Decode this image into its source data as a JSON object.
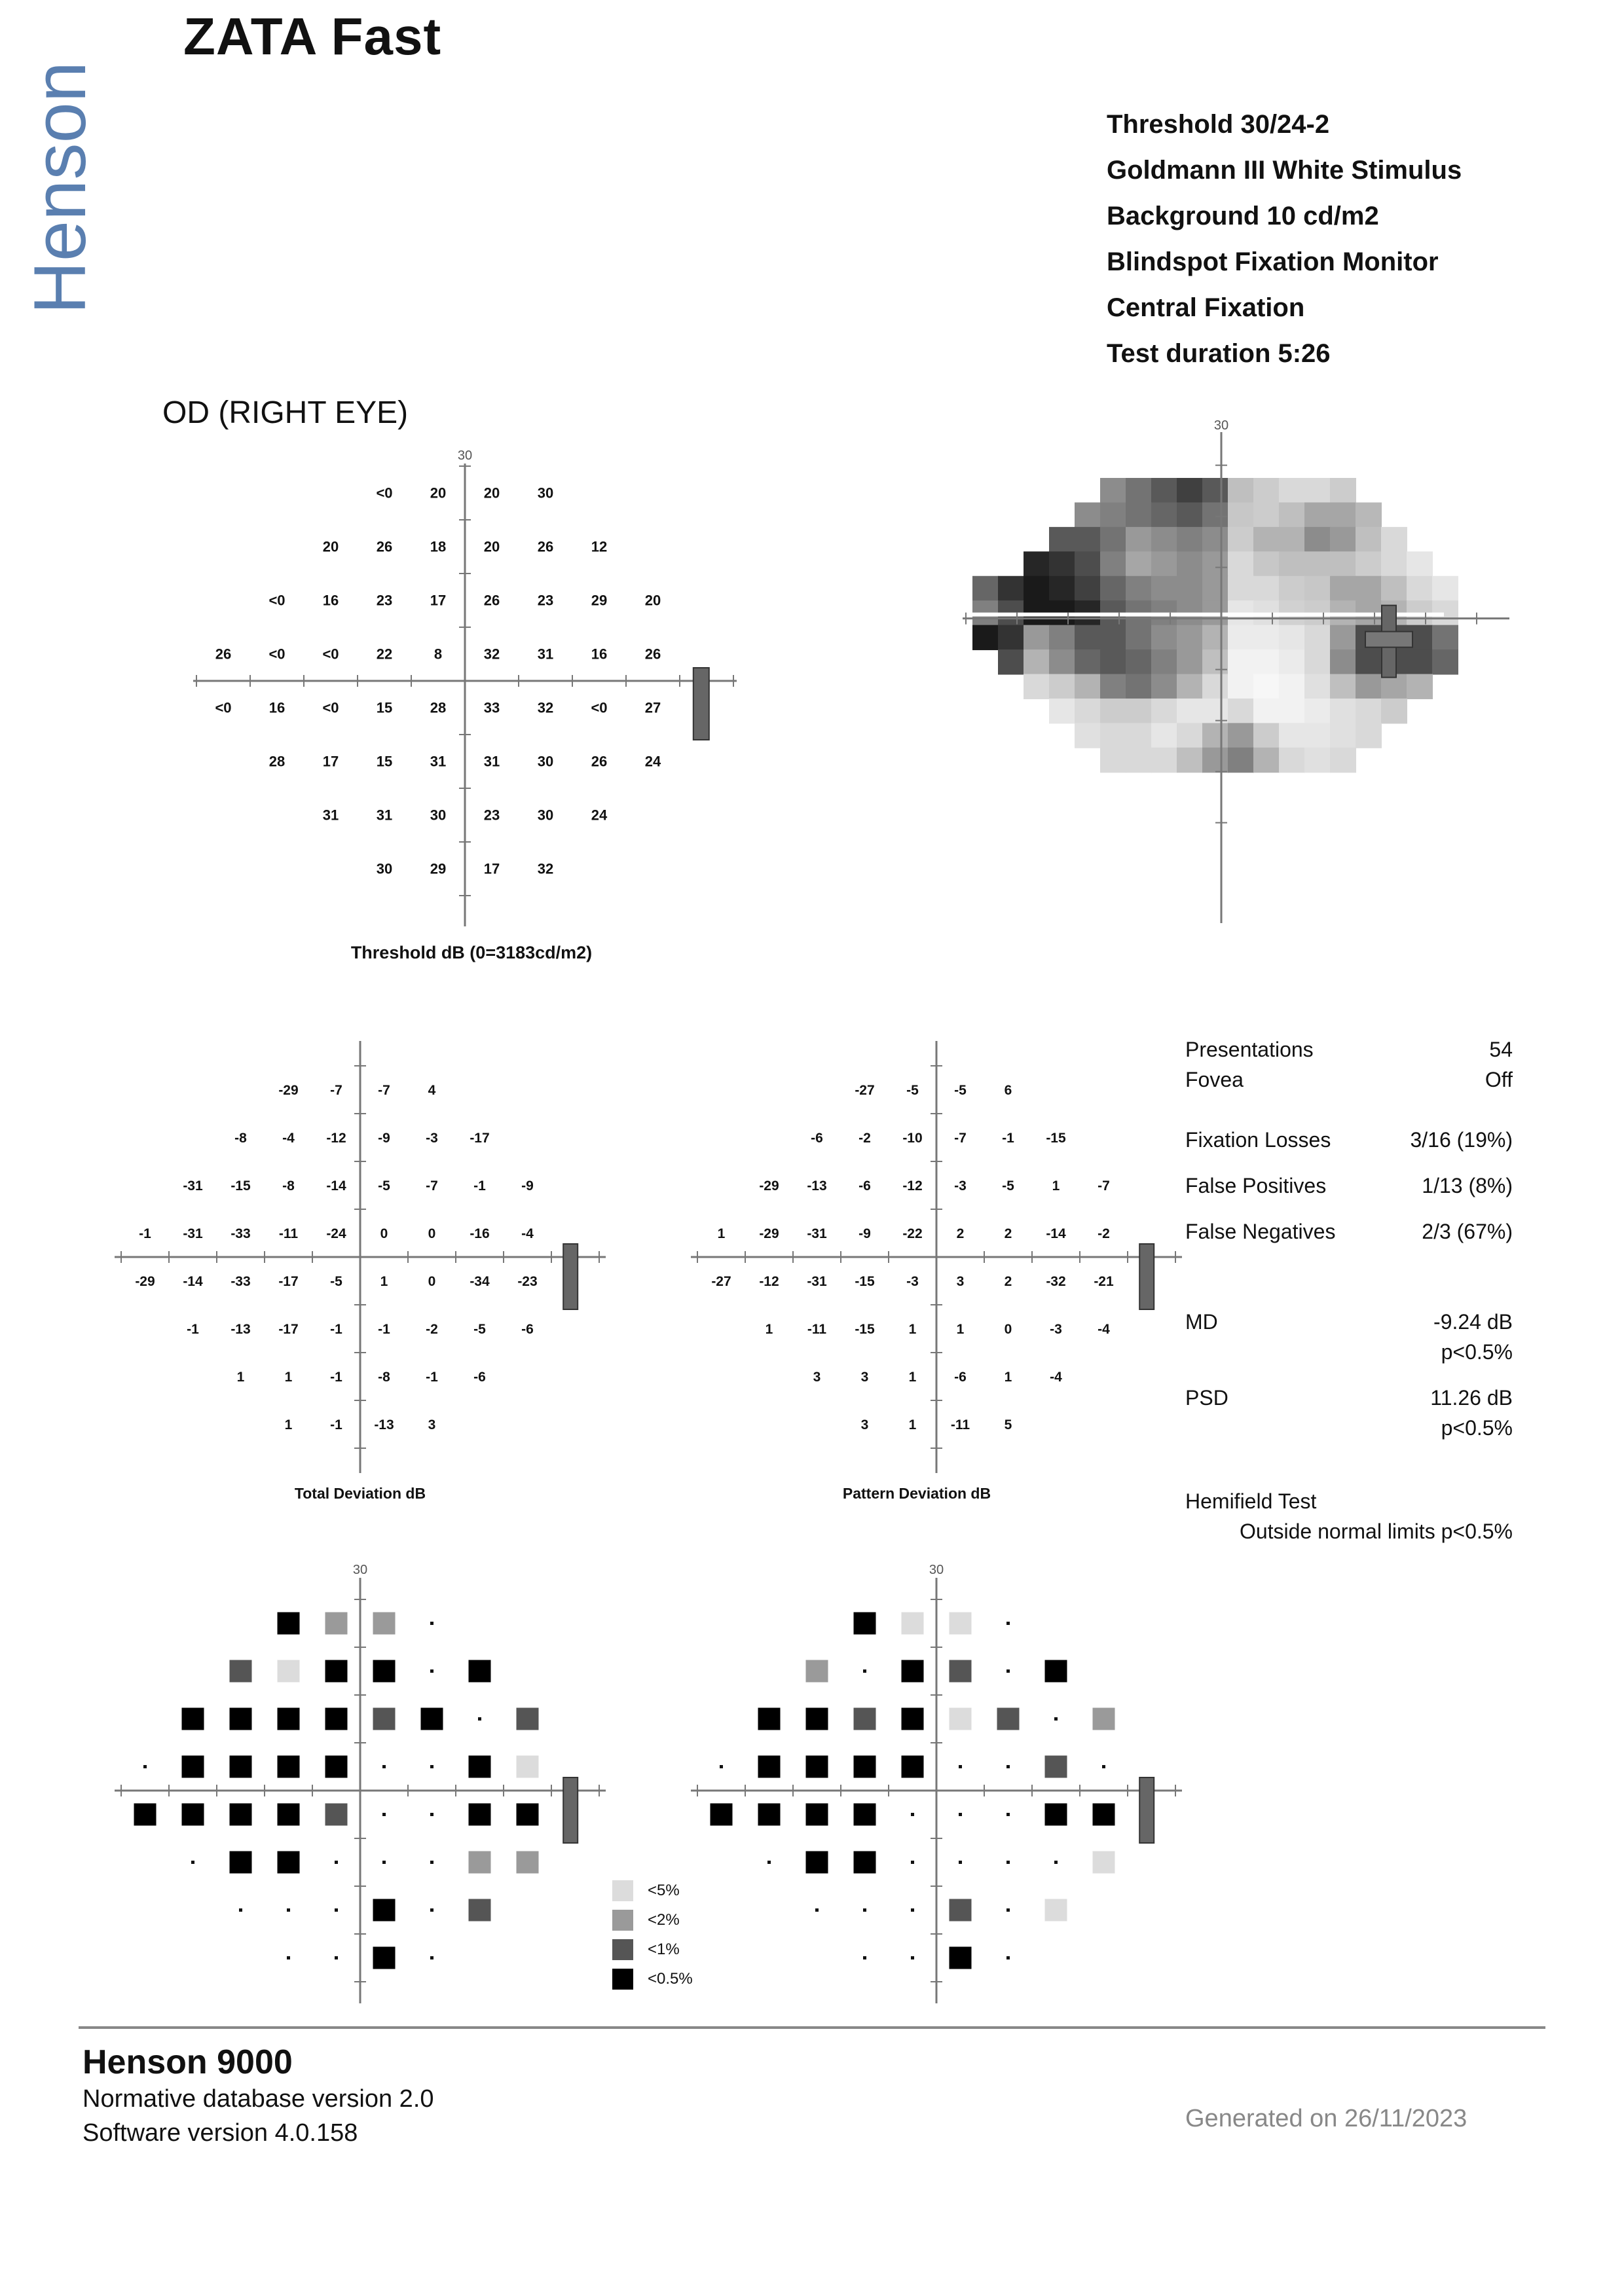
{
  "brand": "Henson",
  "title": "ZATA Fast",
  "test_params": [
    "Threshold 30/24-2",
    "Goldmann III White Stimulus",
    "Background 10 cd/m2",
    "Blindspot Fixation Monitor",
    "Central Fixation",
    "Test duration 5:26"
  ],
  "eye_label": "OD (RIGHT EYE)",
  "axis_tick_label": "30",
  "threshold": {
    "caption": "Threshold dB (0=3183cd/m2)",
    "rows": [
      [
        "<0",
        "20",
        "20",
        "30"
      ],
      [
        "20",
        "26",
        "18",
        "20",
        "26",
        "12"
      ],
      [
        "<0",
        "16",
        "23",
        "17",
        "26",
        "23",
        "29",
        "20"
      ],
      [
        "26",
        "<0",
        "<0",
        "22",
        "8",
        "32",
        "31",
        "16",
        "26"
      ],
      [
        "<0",
        "16",
        "<0",
        "15",
        "28",
        "33",
        "32",
        "<0",
        "27"
      ],
      [
        "28",
        "17",
        "15",
        "31",
        "31",
        "30",
        "26",
        "24"
      ],
      [
        "31",
        "31",
        "30",
        "23",
        "30",
        "24"
      ],
      [
        "30",
        "29",
        "17",
        "32"
      ]
    ]
  },
  "total_deviation": {
    "caption": "Total Deviation dB",
    "rows": [
      [
        "-29",
        "-7",
        "-7",
        "4"
      ],
      [
        "-8",
        "-4",
        "-12",
        "-9",
        "-3",
        "-17"
      ],
      [
        "-31",
        "-15",
        "-8",
        "-14",
        "-5",
        "-7",
        "-1",
        "-9"
      ],
      [
        "-1",
        "-31",
        "-33",
        "-11",
        "-24",
        "0",
        "0",
        "-16",
        "-4"
      ],
      [
        "-29",
        "-14",
        "-33",
        "-17",
        "-5",
        "1",
        "0",
        "-34",
        "-23"
      ],
      [
        "-1",
        "-13",
        "-17",
        "-1",
        "-1",
        "-2",
        "-5",
        "-6"
      ],
      [
        "1",
        "1",
        "-1",
        "-8",
        "-1",
        "-6"
      ],
      [
        "1",
        "-1",
        "-13",
        "3"
      ]
    ]
  },
  "pattern_deviation": {
    "caption": "Pattern Deviation dB",
    "rows": [
      [
        "-27",
        "-5",
        "-5",
        "6"
      ],
      [
        "-6",
        "-2",
        "-10",
        "-7",
        "-1",
        "-15"
      ],
      [
        "-29",
        "-13",
        "-6",
        "-12",
        "-3",
        "-5",
        "1",
        "-7"
      ],
      [
        "1",
        "-29",
        "-31",
        "-9",
        "-22",
        "2",
        "2",
        "-14",
        "-2"
      ],
      [
        "-27",
        "-12",
        "-31",
        "-15",
        "-3",
        "3",
        "2",
        "-32",
        "-21"
      ],
      [
        "1",
        "-11",
        "-15",
        "1",
        "1",
        "0",
        "-3",
        "-4"
      ],
      [
        "3",
        "3",
        "1",
        "-6",
        "1",
        "-4"
      ],
      [
        "3",
        "1",
        "-11",
        "5"
      ]
    ]
  },
  "total_probability": {
    "rows": [
      [
        "p05",
        "p2",
        "p2",
        "n"
      ],
      [
        "p1",
        "p5",
        "p05",
        "p05",
        "n",
        "p05"
      ],
      [
        "p05",
        "p05",
        "p05",
        "p05",
        "p1",
        "p05",
        "n",
        "p1"
      ],
      [
        "n",
        "p05",
        "p05",
        "p05",
        "p05",
        "n",
        "n",
        "p05",
        "p5"
      ],
      [
        "p05",
        "p05",
        "p05",
        "p05",
        "p1",
        "n",
        "n",
        "p05",
        "p05"
      ],
      [
        "n",
        "p05",
        "p05",
        "n",
        "n",
        "n",
        "p2",
        "p2"
      ],
      [
        "n",
        "n",
        "n",
        "p05",
        "n",
        "p1"
      ],
      [
        "n",
        "n",
        "p05",
        "n"
      ]
    ]
  },
  "pattern_probability": {
    "rows": [
      [
        "p05",
        "p5",
        "p5",
        "n"
      ],
      [
        "p2",
        "n",
        "p05",
        "p1",
        "n",
        "p05"
      ],
      [
        "p05",
        "p05",
        "p1",
        "p05",
        "p5",
        "p1",
        "n",
        "p2"
      ],
      [
        "n",
        "p05",
        "p05",
        "p05",
        "p05",
        "n",
        "n",
        "p1",
        "n"
      ],
      [
        "p05",
        "p05",
        "p05",
        "p05",
        "n",
        "n",
        "n",
        "p05",
        "p05"
      ],
      [
        "n",
        "p05",
        "p05",
        "n",
        "n",
        "n",
        "n",
        "p5"
      ],
      [
        "n",
        "n",
        "n",
        "p1",
        "n",
        "p5"
      ],
      [
        "n",
        "n",
        "p05",
        "n"
      ]
    ]
  },
  "legend": [
    {
      "key": "p5",
      "label": "<5%",
      "color": "#dcdcdc"
    },
    {
      "key": "p2",
      "label": "<2%",
      "color": "#9a9a9a"
    },
    {
      "key": "p1",
      "label": "<1%",
      "color": "#555555"
    },
    {
      "key": "p05",
      "label": "<0.5%",
      "color": "#000000"
    }
  ],
  "stats": {
    "presentations_label": "Presentations",
    "presentations_value": "54",
    "fovea_label": "Fovea",
    "fovea_value": "Off",
    "fixation_losses_label": "Fixation Losses",
    "fixation_losses_value": "3/16 (19%)",
    "false_positives_label": "False Positives",
    "false_positives_value": "1/13 (8%)",
    "false_negatives_label": "False Negatives",
    "false_negatives_value": "2/3 (67%)",
    "md_label": "MD",
    "md_value": "-9.24 dB",
    "md_p": "p<0.5%",
    "psd_label": "PSD",
    "psd_value": "11.26 dB",
    "psd_p": "p<0.5%",
    "hemifield_label": "Hemifield Test",
    "hemifield_value": "Outside normal limits p<0.5%"
  },
  "footer": {
    "title": "Henson 9000",
    "line1": "Normative database version 2.0",
    "line2": "Software version 4.0.158",
    "generated": "Generated on 26/11/2023"
  },
  "greyscale": [
    [
      0.0,
      0.0,
      0.0,
      0.0,
      0.0,
      0.55,
      0.45,
      0.35,
      0.25,
      0.35,
      0.75,
      0.8,
      0.85,
      0.85,
      0.8,
      0.0,
      0.0,
      0.0,
      0.0,
      0.0
    ],
    [
      0.0,
      0.0,
      0.0,
      0.0,
      0.55,
      0.5,
      0.45,
      0.4,
      0.35,
      0.45,
      0.78,
      0.8,
      0.75,
      0.65,
      0.65,
      0.72,
      0.0,
      0.0,
      0.0,
      0.0
    ],
    [
      0.0,
      0.0,
      0.0,
      0.35,
      0.35,
      0.45,
      0.6,
      0.55,
      0.5,
      0.55,
      0.8,
      0.7,
      0.7,
      0.55,
      0.6,
      0.75,
      0.85,
      0.0,
      0.0,
      0.0
    ],
    [
      0.0,
      0.0,
      0.15,
      0.2,
      0.3,
      0.5,
      0.65,
      0.6,
      0.55,
      0.6,
      0.85,
      0.78,
      0.75,
      0.75,
      0.75,
      0.8,
      0.85,
      0.9,
      0.0,
      0.0
    ],
    [
      0.4,
      0.2,
      0.1,
      0.15,
      0.25,
      0.4,
      0.5,
      0.55,
      0.55,
      0.6,
      0.85,
      0.85,
      0.8,
      0.78,
      0.65,
      0.65,
      0.75,
      0.85,
      0.9,
      0.0
    ],
    [
      0.5,
      0.3,
      0.1,
      0.1,
      0.15,
      0.35,
      0.45,
      0.5,
      0.55,
      0.6,
      0.9,
      0.88,
      0.82,
      0.8,
      0.7,
      0.65,
      0.7,
      0.8,
      0.85,
      0.0
    ],
    [
      0.1,
      0.2,
      0.6,
      0.5,
      0.35,
      0.35,
      0.45,
      0.55,
      0.6,
      0.7,
      0.92,
      0.92,
      0.9,
      0.85,
      0.6,
      0.3,
      0.3,
      0.3,
      0.45,
      0.0
    ],
    [
      0.0,
      0.3,
      0.7,
      0.55,
      0.4,
      0.35,
      0.4,
      0.5,
      0.6,
      0.75,
      0.95,
      0.95,
      0.92,
      0.85,
      0.55,
      0.3,
      0.3,
      0.3,
      0.4,
      0.0
    ],
    [
      0.0,
      0.0,
      0.85,
      0.8,
      0.7,
      0.5,
      0.45,
      0.55,
      0.7,
      0.85,
      0.95,
      0.97,
      0.95,
      0.88,
      0.75,
      0.6,
      0.65,
      0.7,
      0.0,
      0.0
    ],
    [
      0.0,
      0.0,
      0.0,
      0.9,
      0.85,
      0.8,
      0.8,
      0.85,
      0.9,
      0.9,
      0.85,
      0.95,
      0.95,
      0.92,
      0.88,
      0.85,
      0.8,
      0.0,
      0.0,
      0.0
    ],
    [
      0.0,
      0.0,
      0.0,
      0.0,
      0.88,
      0.85,
      0.85,
      0.9,
      0.85,
      0.7,
      0.6,
      0.8,
      0.9,
      0.9,
      0.88,
      0.85,
      0.0,
      0.0,
      0.0,
      0.0
    ],
    [
      0.0,
      0.0,
      0.0,
      0.0,
      0.0,
      0.85,
      0.85,
      0.85,
      0.75,
      0.6,
      0.5,
      0.7,
      0.85,
      0.88,
      0.85,
      0.0,
      0.0,
      0.0,
      0.0,
      0.0
    ]
  ]
}
